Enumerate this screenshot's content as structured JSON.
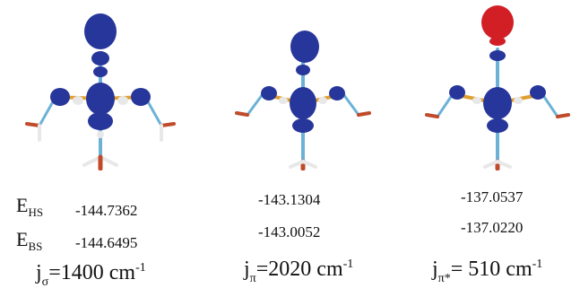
{
  "row_labels": {
    "hs_main": "E",
    "hs_sub": "HS",
    "bs_main": "E",
    "bs_sub": "BS"
  },
  "panels": [
    {
      "hs": "-144.7362",
      "bs": "-144.6495",
      "j_sub": "σ",
      "j_value": "=1400 cm",
      "j_exp": "-1",
      "colors": {
        "lobe": "#27369a",
        "top_lobe": "#27369a"
      }
    },
    {
      "hs": "-143.1304",
      "bs": "-143.0052",
      "j_sub": "π",
      "j_value": "=2020 cm",
      "j_exp": "-1",
      "colors": {
        "lobe": "#27369a",
        "top_lobe": "#27369a"
      }
    },
    {
      "hs": "-137.0537",
      "bs": "-137.0220",
      "j_sub": "π*",
      "j_value": "= 510  cm",
      "j_exp": "-1",
      "colors": {
        "lobe": "#27369a",
        "top_lobe": "#d21f26"
      }
    }
  ],
  "j_main": "j"
}
